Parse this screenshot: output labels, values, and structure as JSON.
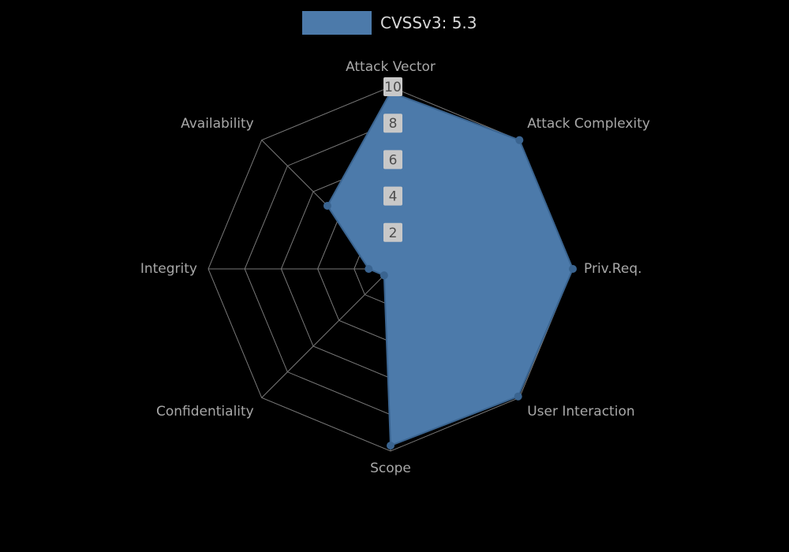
{
  "chart_data": {
    "type": "radar",
    "title": "CVSSv3: 5.3",
    "legend_entries": [
      {
        "label": "CVSSv3: 5.3"
      }
    ],
    "legend_position": "top-center",
    "axes": [
      "Attack Vector",
      "Attack Complexity",
      "Priv.Req.",
      "User Interaction",
      "Scope",
      "Confidentiality",
      "Integrity",
      "Availability"
    ],
    "values": [
      9.7,
      10,
      10,
      9.9,
      9.7,
      0.5,
      1.2,
      4.9
    ],
    "ticks": [
      2,
      4,
      6,
      8,
      10
    ],
    "rmax": 10,
    "grid": true,
    "colors": {
      "series": "#4c7aaa",
      "series_edge": "#3a6490",
      "grid": "#787878",
      "axis_label": "#a8a8a8",
      "tick_bg": "#c8c8c8",
      "tick_text": "#4c4c4c",
      "legend_text": "#d8d8d8",
      "background": "#000000"
    }
  }
}
